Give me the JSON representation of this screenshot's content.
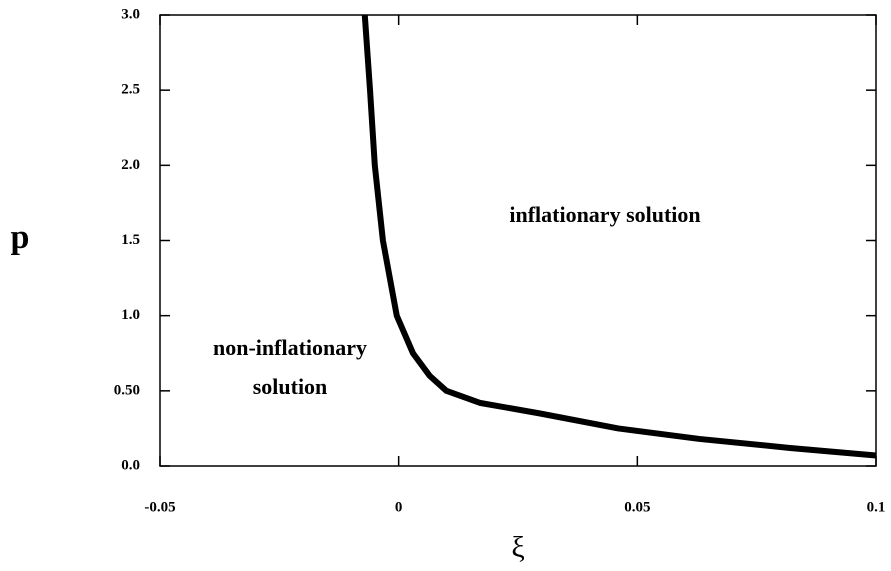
{
  "chart_data": {
    "type": "line",
    "x_label": "ξ",
    "y_label": "p",
    "x": [
      -0.0071,
      -0.006,
      -0.005,
      -0.0033,
      -0.0004,
      0.003,
      0.0065,
      0.01,
      0.017,
      0.0295,
      0.046,
      0.063,
      0.082,
      0.1
    ],
    "series": [
      {
        "color": "#000000",
        "values": [
          3.0,
          2.5,
          2.0,
          1.5,
          1.0,
          0.75,
          0.6,
          0.5,
          0.42,
          0.35,
          0.25,
          0.18,
          0.12,
          0.07
        ]
      }
    ],
    "xlim": [
      -0.05,
      0.1
    ],
    "xticks": [
      -0.05,
      0,
      0.05,
      0.1
    ],
    "ylim": [
      0,
      3.0
    ],
    "yticks": [
      {
        "value": 0,
        "label": "0.0"
      },
      {
        "value": 0.5,
        "label": "0.50"
      },
      {
        "value": 1.0,
        "label": "1.0"
      },
      {
        "value": 1.5,
        "label": "1.5"
      },
      {
        "value": 2.0,
        "label": "2.0"
      },
      {
        "value": 2.5,
        "label": "2.5"
      },
      {
        "value": 3.0,
        "label": "3.0"
      }
    ],
    "annotations": [
      "inflationary  solution",
      "non-inflationary",
      "solution"
    ],
    "grid": false
  }
}
